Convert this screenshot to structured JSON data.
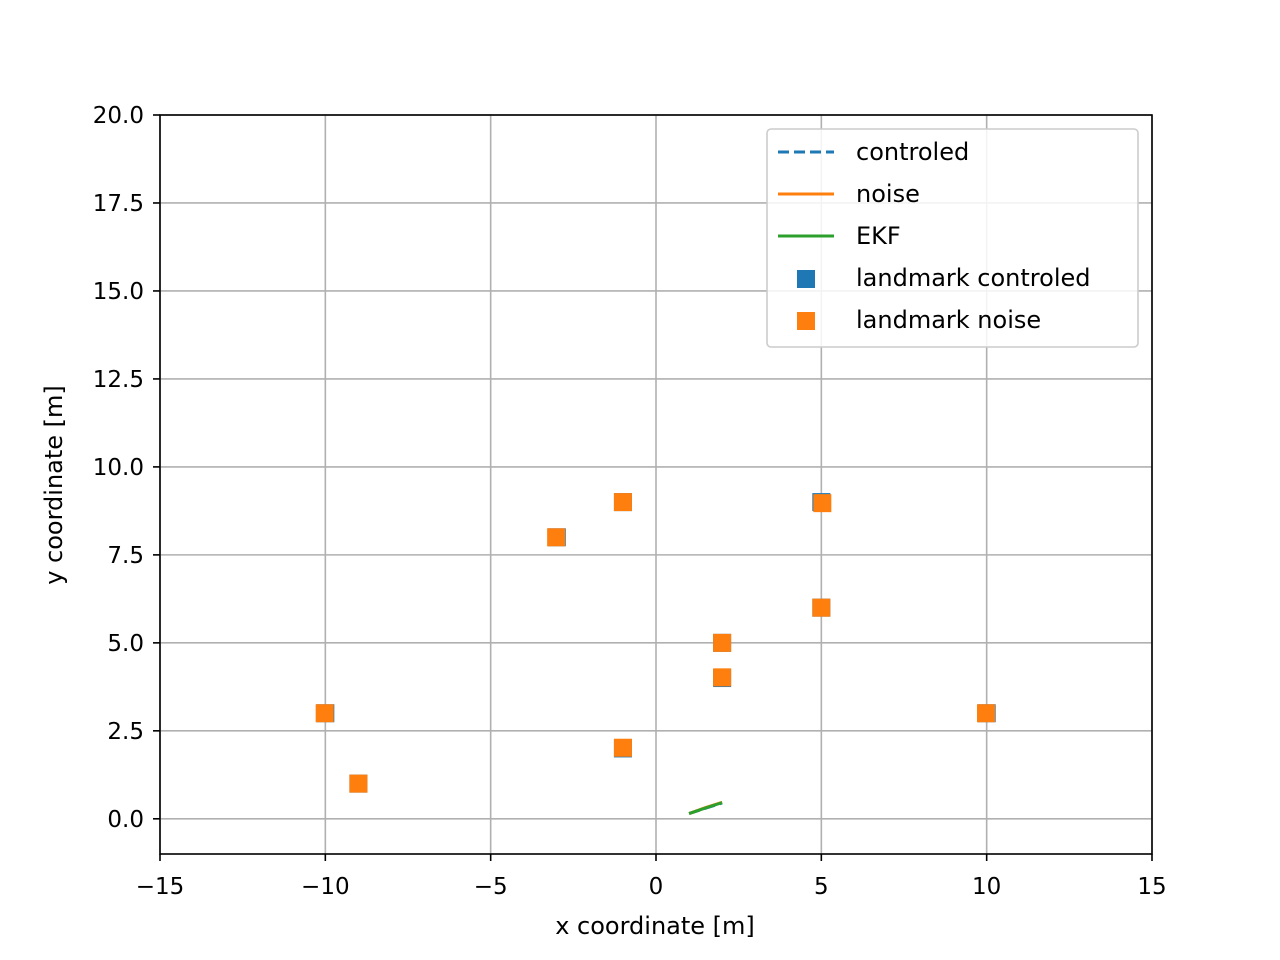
{
  "chart_data": {
    "type": "scatter",
    "title": "",
    "xlabel": "x coordinate [m]",
    "ylabel": "y coordinate [m]",
    "xlim": [
      -15,
      15
    ],
    "ylim": [
      -1,
      20
    ],
    "xticks": [
      -15,
      -10,
      -5,
      0,
      5,
      10,
      15
    ],
    "xtick_labels": [
      "−15",
      "−10",
      "−5",
      "0",
      "5",
      "10",
      "15"
    ],
    "yticks": [
      0,
      2.5,
      5,
      7.5,
      10,
      12.5,
      15,
      17.5,
      20
    ],
    "ytick_labels": [
      "0.0",
      "2.5",
      "5.0",
      "7.5",
      "10.0",
      "12.5",
      "15.0",
      "17.5",
      "20.0"
    ],
    "grid": true,
    "legend_position": "top-right",
    "lines": [
      {
        "name": "controled",
        "color": "#1f77b4",
        "style": "dashed",
        "x": [
          1.0,
          1.5,
          2.0
        ],
        "y": [
          0.15,
          0.3,
          0.45
        ]
      },
      {
        "name": "noise",
        "color": "#ff7f0e",
        "style": "solid",
        "x": [
          1.0,
          1.5,
          2.0
        ],
        "y": [
          0.15,
          0.32,
          0.47
        ]
      },
      {
        "name": "EKF",
        "color": "#2ca02c",
        "style": "solid",
        "x": [
          1.0,
          1.5,
          2.0
        ],
        "y": [
          0.15,
          0.31,
          0.46
        ]
      }
    ],
    "scatter": [
      {
        "name": "landmark controled",
        "color": "#1f77b4",
        "marker": "square",
        "points": [
          [
            -10,
            3
          ],
          [
            -9,
            1
          ],
          [
            -3,
            8
          ],
          [
            -1,
            9
          ],
          [
            -1,
            2
          ],
          [
            2,
            5
          ],
          [
            2,
            4
          ],
          [
            5,
            9
          ],
          [
            5,
            6
          ],
          [
            10,
            3
          ]
        ]
      },
      {
        "name": "landmark noise",
        "color": "#ff7f0e",
        "marker": "square",
        "points": [
          [
            -10.02,
            3.0
          ],
          [
            -9.0,
            1.0
          ],
          [
            -3.02,
            8.0
          ],
          [
            -1.0,
            9.0
          ],
          [
            -1.0,
            2.02
          ],
          [
            2.0,
            5.0
          ],
          [
            2.0,
            4.02
          ],
          [
            5.03,
            8.97
          ],
          [
            5.0,
            6.0
          ],
          [
            9.98,
            3.0
          ]
        ]
      }
    ]
  }
}
